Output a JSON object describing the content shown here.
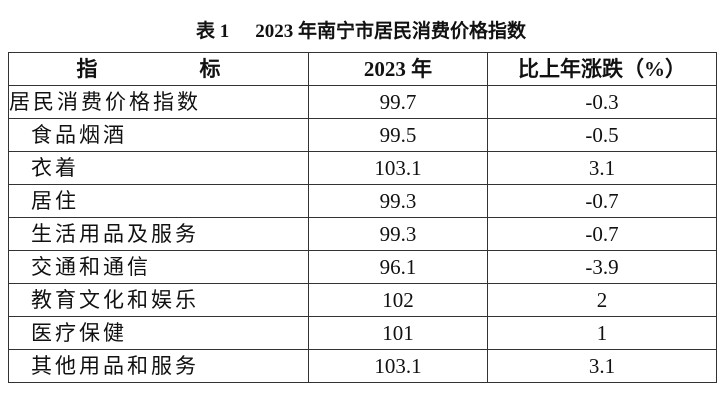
{
  "header": {
    "label": "表 1",
    "title": "2023 年南宁市居民消费价格指数"
  },
  "table": {
    "columns": [
      "指　　标",
      "2023 年",
      "比上年涨跌（%）"
    ],
    "rows": [
      [
        "居民消费价格指数",
        "99.7",
        "-0.3"
      ],
      [
        "食品烟酒",
        "99.5",
        "-0.5"
      ],
      [
        "衣着",
        "103.1",
        "3.1"
      ],
      [
        "居住",
        "99.3",
        "-0.7"
      ],
      [
        "生活用品及服务",
        "99.3",
        "-0.7"
      ],
      [
        "交通和通信",
        "96.1",
        "-3.9"
      ],
      [
        "教育文化和娱乐",
        "102",
        "2"
      ],
      [
        "医疗保健",
        "101",
        "1"
      ],
      [
        "其他用品和服务",
        "103.1",
        "3.1"
      ]
    ]
  }
}
